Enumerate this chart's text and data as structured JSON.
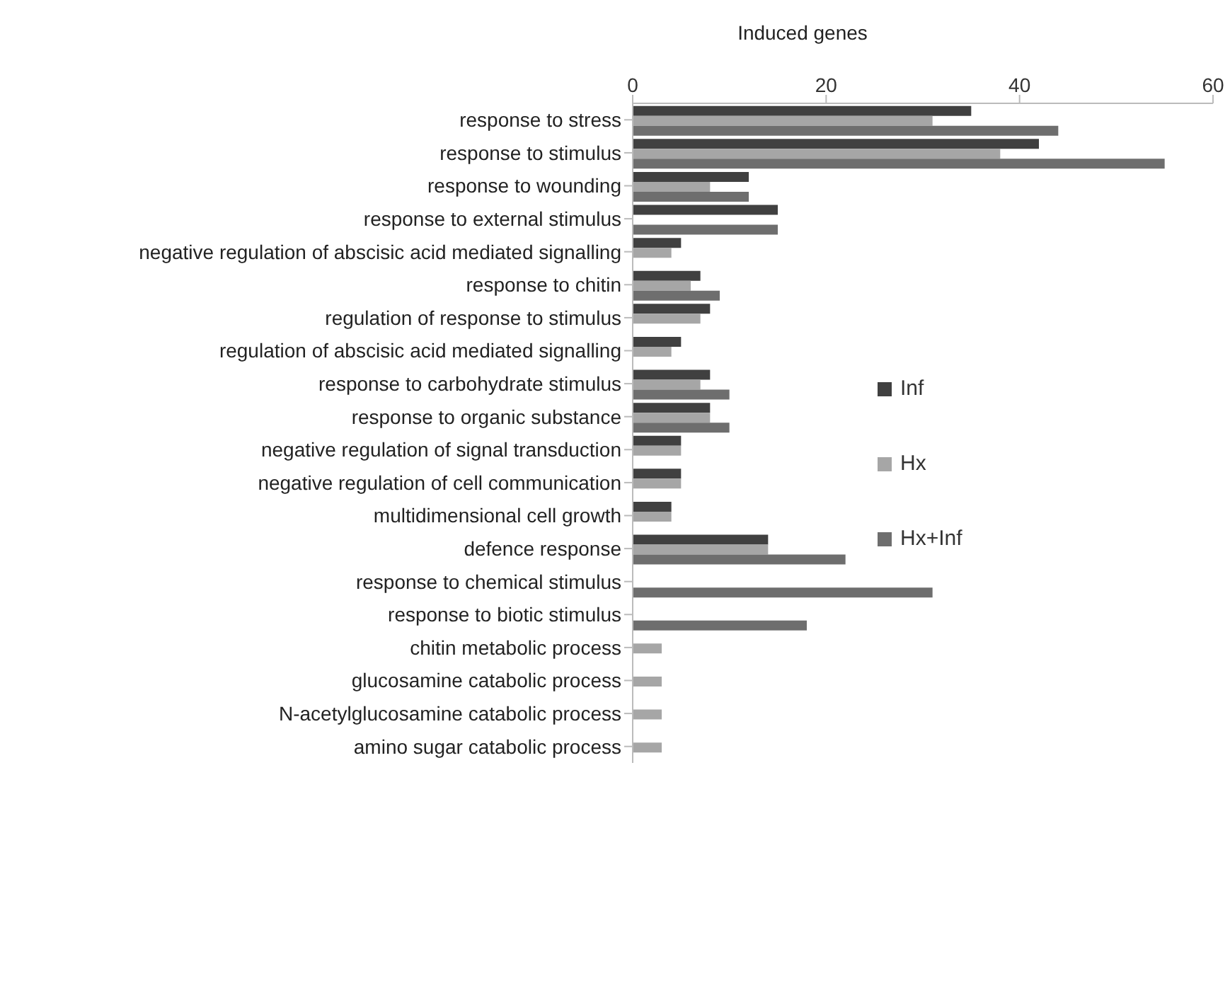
{
  "chart_data": {
    "type": "bar",
    "orientation": "horizontal",
    "xlabel": "Induced genes",
    "categories": [
      "response to stress",
      "response to stimulus",
      "response to wounding",
      "response to external stimulus",
      "negative regulation of abscisic acid mediated signalling",
      "response to chitin",
      "regulation of response to stimulus",
      "regulation of abscisic acid mediated signalling",
      "response to carbohydrate stimulus",
      "response to organic substance",
      "negative regulation of signal transduction",
      "negative regulation of cell communication",
      "multidimensional cell growth",
      "defence response",
      "response to chemical stimulus",
      "response to biotic stimulus",
      "chitin metabolic process",
      "glucosamine catabolic process",
      "N-acetylglucosamine catabolic process",
      "amino sugar catabolic process"
    ],
    "series": [
      {
        "name": "Inf",
        "color": "#404040",
        "values": [
          35,
          42,
          12,
          15,
          5,
          7,
          8,
          5,
          8,
          8,
          5,
          5,
          4,
          14,
          null,
          null,
          null,
          null,
          null,
          null
        ]
      },
      {
        "name": "Hx",
        "color": "#a6a6a6",
        "values": [
          31,
          38,
          8,
          null,
          4,
          6,
          7,
          4,
          7,
          8,
          5,
          5,
          4,
          14,
          null,
          null,
          3,
          3,
          3,
          3
        ]
      },
      {
        "name": "Hx+Inf",
        "color": "#6e6e6e",
        "values": [
          44,
          55,
          12,
          15,
          null,
          9,
          null,
          null,
          10,
          10,
          null,
          null,
          null,
          22,
          31,
          18,
          null,
          null,
          null,
          null
        ]
      }
    ],
    "xlim": [
      0,
      60
    ],
    "xticks": [
      0,
      20,
      40,
      60
    ],
    "grid": false,
    "legend": "right"
  }
}
